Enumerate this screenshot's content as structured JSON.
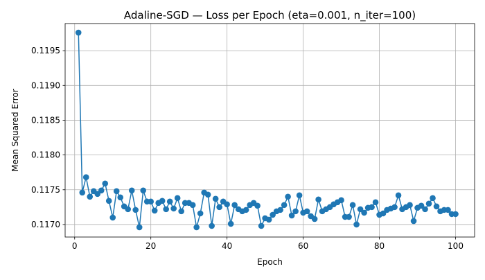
{
  "chart_data": {
    "type": "line",
    "title": "Adaline-SGD — Loss per Epoch (eta=0.001, n_iter=100)",
    "xlabel": "Epoch",
    "ylabel": "Mean Squared Error",
    "xlim": [
      -2.5,
      105
    ],
    "ylim": [
      0.11682,
      0.11989
    ],
    "xticks": [
      0,
      20,
      40,
      60,
      80,
      100
    ],
    "yticks": [
      0.117,
      0.1175,
      0.118,
      0.1185,
      0.119,
      0.1195
    ],
    "xtick_labels": [
      "0",
      "20",
      "40",
      "60",
      "80",
      "100"
    ],
    "ytick_labels": [
      "0.1170",
      "0.1175",
      "0.1180",
      "0.1185",
      "0.1190",
      "0.1195"
    ],
    "grid": true,
    "marker": "circle",
    "color": "#1f77b4",
    "x": [
      1,
      2,
      3,
      4,
      5,
      6,
      7,
      8,
      9,
      10,
      11,
      12,
      13,
      14,
      15,
      16,
      17,
      18,
      19,
      20,
      21,
      22,
      23,
      24,
      25,
      26,
      27,
      28,
      29,
      30,
      31,
      32,
      33,
      34,
      35,
      36,
      37,
      38,
      39,
      40,
      41,
      42,
      43,
      44,
      45,
      46,
      47,
      48,
      49,
      50,
      51,
      52,
      53,
      54,
      55,
      56,
      57,
      58,
      59,
      60,
      61,
      62,
      63,
      64,
      65,
      66,
      67,
      68,
      69,
      70,
      71,
      72,
      73,
      74,
      75,
      76,
      77,
      78,
      79,
      80,
      81,
      82,
      83,
      84,
      85,
      86,
      87,
      88,
      89,
      90,
      91,
      92,
      93,
      94,
      95,
      96,
      97,
      98,
      99,
      100
    ],
    "values": [
      0.11976,
      0.11746,
      0.11768,
      0.1174,
      0.11748,
      0.11744,
      0.11749,
      0.11759,
      0.11734,
      0.1171,
      0.11748,
      0.11739,
      0.11726,
      0.11722,
      0.11749,
      0.11721,
      0.11696,
      0.11749,
      0.11733,
      0.11733,
      0.1172,
      0.11731,
      0.11734,
      0.11722,
      0.11733,
      0.11723,
      0.11738,
      0.11719,
      0.11731,
      0.11731,
      0.11728,
      0.11696,
      0.11716,
      0.11746,
      0.11743,
      0.11698,
      0.11737,
      0.11725,
      0.11733,
      0.11729,
      0.11701,
      0.11728,
      0.11722,
      0.11719,
      0.11721,
      0.11728,
      0.11731,
      0.11727,
      0.11698,
      0.11709,
      0.11707,
      0.11714,
      0.11719,
      0.11721,
      0.11728,
      0.1174,
      0.11713,
      0.11719,
      0.11742,
      0.11717,
      0.11719,
      0.11712,
      0.11708,
      0.11736,
      0.11719,
      0.11722,
      0.11725,
      0.11729,
      0.11732,
      0.11735,
      0.11711,
      0.11711,
      0.11728,
      0.117,
      0.11722,
      0.11717,
      0.11724,
      0.11725,
      0.11732,
      0.11714,
      0.11716,
      0.11721,
      0.11723,
      0.11725,
      0.11742,
      0.11722,
      0.11725,
      0.11728,
      0.11705,
      0.11724,
      0.11727,
      0.11722,
      0.1173,
      0.11738,
      0.11726,
      0.11719,
      0.11721,
      0.11721,
      0.11715,
      0.11715
    ]
  }
}
